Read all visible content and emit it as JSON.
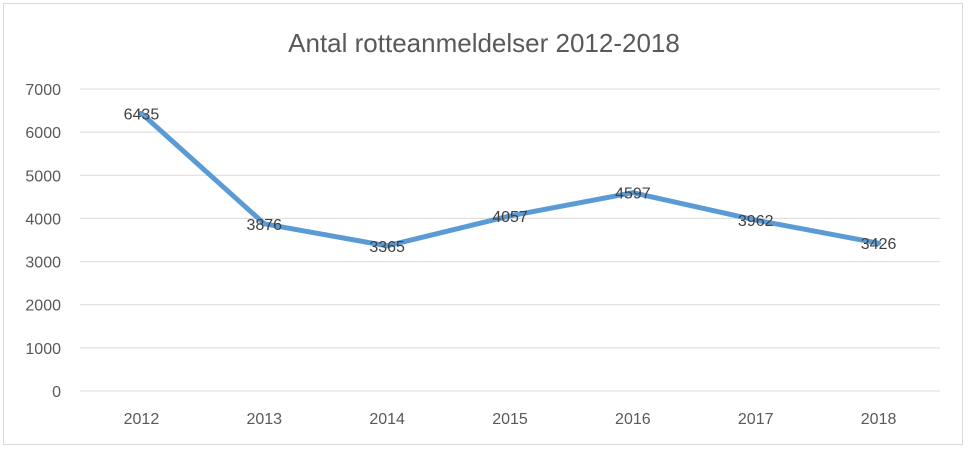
{
  "chart_data": {
    "type": "line",
    "title": "Antal rotteanmeldelser 2012-2018",
    "xlabel": "",
    "ylabel": "",
    "categories": [
      "2012",
      "2013",
      "2014",
      "2015",
      "2016",
      "2017",
      "2018"
    ],
    "series": [
      {
        "name": "Antal rotteanmeldelser",
        "values": [
          6435,
          3876,
          3365,
          4057,
          4597,
          3962,
          3426
        ],
        "color": "#5b9bd5"
      }
    ],
    "ylim": [
      0,
      7000
    ],
    "yticks": [
      0,
      1000,
      2000,
      3000,
      4000,
      5000,
      6000,
      7000
    ],
    "grid": true,
    "legend": "none",
    "data_labels": true
  }
}
